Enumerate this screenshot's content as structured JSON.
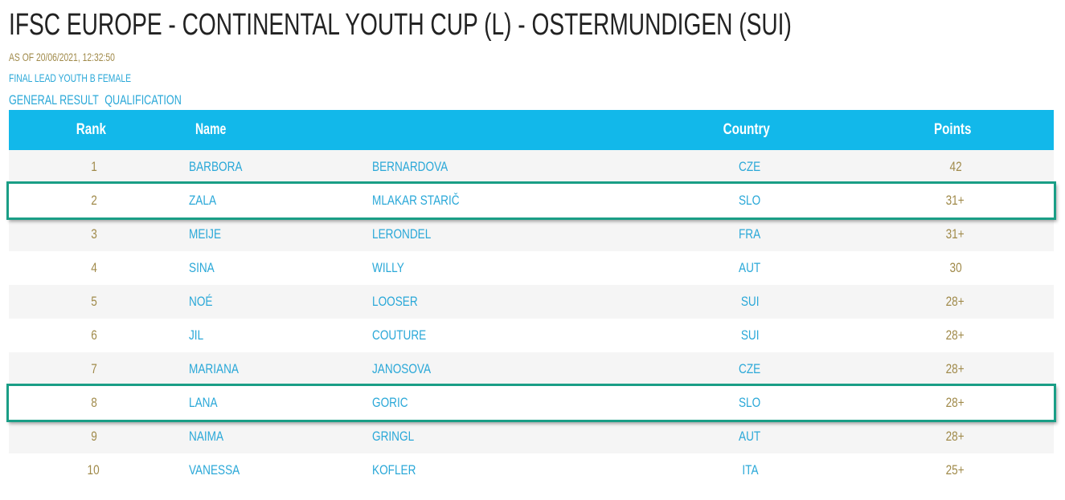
{
  "header": {
    "title": "IFSC EUROPE - CONTINENTAL YOUTH CUP (L) - OSTERMUNDIGEN (SUI)",
    "as_of": "AS OF 20/06/2021, 12:32:50",
    "event": "FINAL LEAD YOUTH B FEMALE",
    "links": [
      "GENERAL RESULT",
      "QUALIFICATION"
    ]
  },
  "table": {
    "columns": [
      "Rank",
      "Name",
      "Country",
      "Points"
    ],
    "rows": [
      [
        "1",
        "BARBORA",
        "BERNARDOVA",
        "CZE",
        "42"
      ],
      [
        "2",
        "ZALA",
        "MLAKAR STARIČ",
        "SLO",
        "31+"
      ],
      [
        "3",
        "MEIJE",
        "LERONDEL",
        "FRA",
        "31+"
      ],
      [
        "4",
        "SINA",
        "WILLY",
        "AUT",
        "30"
      ],
      [
        "5",
        "NOÉ",
        "LOOSER",
        "SUI",
        "28+"
      ],
      [
        "6",
        "JIL",
        "COUTURE",
        "SUI",
        "28+"
      ],
      [
        "7",
        "MARIANA",
        "JANOSOVA",
        "CZE",
        "28+"
      ],
      [
        "8",
        "LANA",
        "GORIC",
        "SLO",
        "28+"
      ],
      [
        "9",
        "NAIMA",
        "GRINGL",
        "AUT",
        "28+"
      ],
      [
        "10",
        "VANESSA",
        "KOFLER",
        "ITA",
        "25+"
      ]
    ]
  }
}
